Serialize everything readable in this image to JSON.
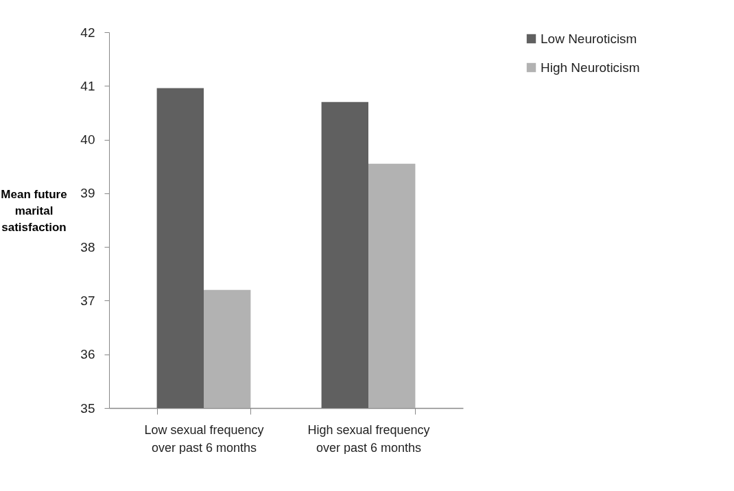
{
  "chart_data": {
    "type": "bar",
    "ylabel": "Mean future marital satisfaction",
    "categories": [
      "Low sexual frequency over past 6 months",
      "High sexual frequency over past 6 months"
    ],
    "series": [
      {
        "name": "Low Neuroticism",
        "color": "#606060",
        "values": [
          40.96,
          40.7
        ]
      },
      {
        "name": "High Neuroticism",
        "color": "#b2b2b2",
        "values": [
          37.2,
          39.55
        ]
      }
    ],
    "ylim": [
      35,
      42
    ],
    "yticks": [
      35,
      36,
      37,
      38,
      39,
      40,
      41,
      42
    ],
    "grid": false,
    "legend": "right"
  }
}
